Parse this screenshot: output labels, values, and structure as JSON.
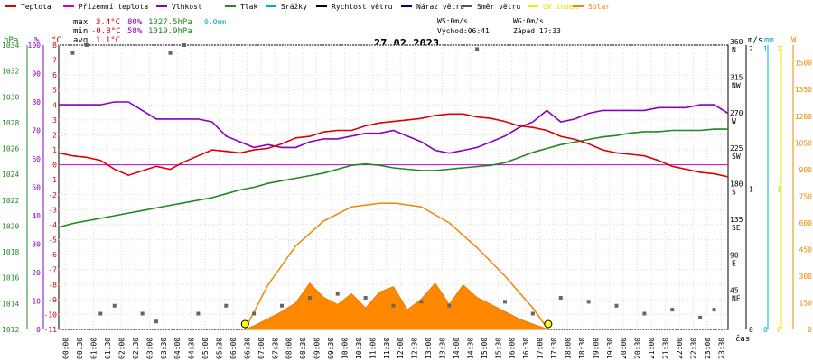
{
  "legend": [
    {
      "key": "teplota",
      "label": "Teplota",
      "color": "#dd0000"
    },
    {
      "key": "prizemni",
      "label": "Přízemní teplota",
      "color": "#cc00cc"
    },
    {
      "key": "vlhkost",
      "label": "Vlhkost",
      "color": "#8800bb"
    },
    {
      "key": "tlak",
      "label": "Tlak",
      "color": "#228822"
    },
    {
      "key": "srazky",
      "label": "Srážky",
      "color": "#00aacc"
    },
    {
      "key": "rychlost",
      "label": "Rychlost větru",
      "color": "#000000"
    },
    {
      "key": "naraz",
      "label": "Náraz větru",
      "color": "#000088"
    },
    {
      "key": "smer",
      "label": "Směr větru",
      "color": "#555555"
    },
    {
      "key": "uv",
      "label": "UV index",
      "color": "#eeee00"
    },
    {
      "key": "solar",
      "label": "Solar",
      "color": "#ee8800"
    }
  ],
  "stats": {
    "max_label": "max",
    "min_label": "min",
    "avg_label": "avg",
    "max_temp": "3.4°C",
    "max_hum": "80%",
    "max_press": "1027.5hPa",
    "max_rain": "0.0mm",
    "min_temp": "-0.8°C",
    "min_hum": "58%",
    "min_press": "1019.9hPa",
    "avg_temp": "1.1°C"
  },
  "wind_info": {
    "ws": "WS:0m/s",
    "wg": "WG:0m/s",
    "sunrise": "Východ:06:41",
    "sunset": "Západ:17:33"
  },
  "date": "27.02.2023",
  "axis_units": {
    "hpa": "hPa",
    "pct": "%",
    "degc": "°C",
    "ms": "m/s",
    "mm": "mm",
    "w": "W",
    "cas": "čas"
  },
  "chart_data": {
    "type": "line",
    "title": "27.02.2023",
    "x_ticks": [
      "00:00",
      "00:30",
      "01:00",
      "01:30",
      "02:00",
      "02:30",
      "03:00",
      "03:30",
      "04:00",
      "04:30",
      "05:00",
      "05:30",
      "06:00",
      "06:30",
      "07:00",
      "07:30",
      "08:00",
      "08:30",
      "09:00",
      "09:30",
      "10:00",
      "10:30",
      "11:00",
      "11:30",
      "12:00",
      "12:30",
      "13:00",
      "13:30",
      "14:00",
      "14:30",
      "15:00",
      "15:30",
      "16:00",
      "16:30",
      "17:00",
      "17:30",
      "18:00",
      "18:30",
      "19:00",
      "19:30",
      "20:00",
      "20:30",
      "21:00",
      "21:30",
      "22:00",
      "22:30",
      "23:00",
      "23:30"
    ],
    "axes": {
      "pressure_hpa": {
        "ticks": [
          1012,
          1014,
          1016,
          1018,
          1020,
          1022,
          1024,
          1026,
          1028,
          1030,
          1032,
          1034
        ]
      },
      "humidity_pct": {
        "ticks": [
          0,
          10,
          20,
          30,
          40,
          50,
          60,
          70,
          80,
          90,
          100
        ]
      },
      "temp_c": {
        "ticks": [
          -11,
          -10,
          -9,
          -8,
          -7,
          -6,
          -5,
          -4,
          -3,
          -2,
          -1,
          0,
          1,
          2,
          3,
          4,
          5,
          6,
          7,
          8
        ]
      },
      "wind_dir": {
        "ticks": [
          {
            "deg": 45,
            "label": "NE"
          },
          {
            "deg": 90,
            "label": "E"
          },
          {
            "deg": 135,
            "label": "SE"
          },
          {
            "deg": 180,
            "label": "S"
          },
          {
            "deg": 225,
            "label": "SW"
          },
          {
            "deg": 270,
            "label": "W"
          },
          {
            "deg": 315,
            "label": "NW"
          },
          {
            "deg": 360,
            "label": "N"
          }
        ]
      },
      "wind_ms": {
        "ticks": [
          0,
          1,
          2
        ]
      },
      "rain_mm": {
        "ticks": [
          0,
          1
        ]
      },
      "uv": {
        "ticks": [
          0,
          1,
          2
        ]
      },
      "solar_w": {
        "ticks": [
          0,
          150,
          300,
          450,
          600,
          750,
          900,
          1050,
          1200,
          1350,
          1500
        ]
      }
    },
    "series": [
      {
        "name": "Teplota",
        "unit": "°C",
        "x": [
          0,
          0.5,
          1,
          1.5,
          2,
          2.5,
          3,
          3.5,
          4,
          4.5,
          5,
          5.5,
          6,
          6.5,
          7,
          7.5,
          8,
          8.5,
          9,
          9.5,
          10,
          10.5,
          11,
          11.5,
          12,
          12.5,
          13,
          13.5,
          14,
          14.5,
          15,
          15.5,
          16,
          16.5,
          17,
          17.5,
          18,
          18.5,
          19,
          19.5,
          20,
          20.5,
          21,
          21.5,
          22,
          22.5,
          23,
          23.5,
          24
        ],
        "y": [
          0.8,
          0.6,
          0.5,
          0.3,
          -0.3,
          -0.7,
          -0.4,
          -0.1,
          -0.3,
          0.2,
          0.6,
          1.0,
          0.9,
          0.8,
          1.0,
          1.1,
          1.4,
          1.8,
          1.9,
          2.2,
          2.3,
          2.3,
          2.6,
          2.8,
          2.9,
          3.0,
          3.1,
          3.3,
          3.4,
          3.4,
          3.2,
          3.1,
          2.9,
          2.6,
          2.5,
          2.3,
          1.9,
          1.7,
          1.4,
          1.0,
          0.8,
          0.7,
          0.6,
          0.3,
          -0.1,
          -0.3,
          -0.5,
          -0.6,
          -0.8
        ]
      },
      {
        "name": "Přízemní teplota",
        "unit": "°C",
        "x": [
          0,
          24
        ],
        "y": [
          0,
          0
        ]
      },
      {
        "name": "Vlhkost",
        "unit": "%",
        "x": [
          0,
          0.5,
          1,
          1.5,
          2,
          2.5,
          3,
          3.5,
          4,
          4.5,
          5,
          5.5,
          6,
          6.5,
          7,
          7.5,
          8,
          8.5,
          9,
          9.5,
          10,
          10.5,
          11,
          11.5,
          12,
          12.5,
          13,
          13.5,
          14,
          14.5,
          15,
          15.5,
          16,
          16.5,
          17,
          17.5,
          18,
          18.5,
          19,
          19.5,
          20,
          20.5,
          21,
          21.5,
          22,
          22.5,
          23,
          23.5,
          24
        ],
        "y": [
          79,
          79,
          79,
          79,
          80,
          80,
          77,
          74,
          74,
          74,
          74,
          73,
          68,
          66,
          64,
          65,
          64,
          64,
          66,
          67,
          67,
          68,
          69,
          69,
          70,
          68,
          66,
          63,
          62,
          63,
          64,
          66,
          68,
          71,
          73,
          77,
          73,
          74,
          76,
          77,
          77,
          77,
          77,
          78,
          78,
          78,
          79,
          79,
          76
        ]
      },
      {
        "name": "Tlak",
        "unit": "hPa",
        "x": [
          0,
          0.5,
          1,
          1.5,
          2,
          2.5,
          3,
          3.5,
          4,
          4.5,
          5,
          5.5,
          6,
          6.5,
          7,
          7.5,
          8,
          8.5,
          9,
          9.5,
          10,
          10.5,
          11,
          11.5,
          12,
          12.5,
          13,
          13.5,
          14,
          14.5,
          15,
          15.5,
          16,
          16.5,
          17,
          17.5,
          18,
          18.5,
          19,
          19.5,
          20,
          20.5,
          21,
          21.5,
          22,
          22.5,
          23,
          23.5,
          24
        ],
        "y": [
          1019.9,
          1020.2,
          1020.4,
          1020.6,
          1020.8,
          1021.0,
          1021.2,
          1021.4,
          1021.6,
          1021.8,
          1022.0,
          1022.2,
          1022.5,
          1022.8,
          1023.0,
          1023.3,
          1023.5,
          1023.7,
          1023.9,
          1024.1,
          1024.4,
          1024.7,
          1024.8,
          1024.7,
          1024.5,
          1024.4,
          1024.3,
          1024.3,
          1024.4,
          1024.5,
          1024.6,
          1024.7,
          1024.9,
          1025.3,
          1025.7,
          1026.0,
          1026.3,
          1026.5,
          1026.7,
          1026.9,
          1027.0,
          1027.2,
          1027.3,
          1027.3,
          1027.4,
          1027.4,
          1027.4,
          1027.5,
          1027.5
        ]
      },
      {
        "name": "Solar",
        "unit": "W",
        "x": [
          6.68,
          7.0,
          7.5,
          8.0,
          8.5,
          9.0,
          9.5,
          10.0,
          10.5,
          11.0,
          11.5,
          12.0,
          12.5,
          13.0,
          13.5,
          14.0,
          14.5,
          15.0,
          15.5,
          16.0,
          16.5,
          17.0,
          17.55
        ],
        "y": [
          0,
          20,
          60,
          100,
          150,
          260,
          180,
          140,
          200,
          120,
          210,
          240,
          110,
          170,
          260,
          140,
          250,
          180,
          140,
          100,
          60,
          30,
          0
        ]
      },
      {
        "name": "Solar max",
        "unit": "W",
        "x": [
          6.68,
          7.5,
          8.5,
          9.5,
          10.5,
          11.5,
          12.1,
          13.0,
          14.0,
          15.0,
          16.0,
          17.0,
          17.55
        ],
        "y": [
          0,
          250,
          470,
          610,
          690,
          710,
          710,
          690,
          600,
          460,
          300,
          120,
          0
        ]
      },
      {
        "name": "Směr větru",
        "unit": "°",
        "x": [
          0.5,
          1.0,
          1.5,
          2.0,
          3.0,
          3.5,
          4.0,
          4.5,
          5.0,
          6.0,
          7.0,
          8.0,
          9.0,
          10.0,
          11.0,
          12.0,
          13.0,
          14.0,
          15.0,
          16.0,
          17.0,
          18.0,
          19.0,
          20.0,
          21.0,
          22.0,
          23.0,
          23.5
        ],
        "y": [
          350,
          360,
          20,
          30,
          20,
          10,
          350,
          360,
          20,
          30,
          20,
          30,
          40,
          45,
          40,
          30,
          35,
          30,
          355,
          35,
          20,
          40,
          35,
          30,
          20,
          25,
          15,
          25
        ]
      }
    ]
  }
}
